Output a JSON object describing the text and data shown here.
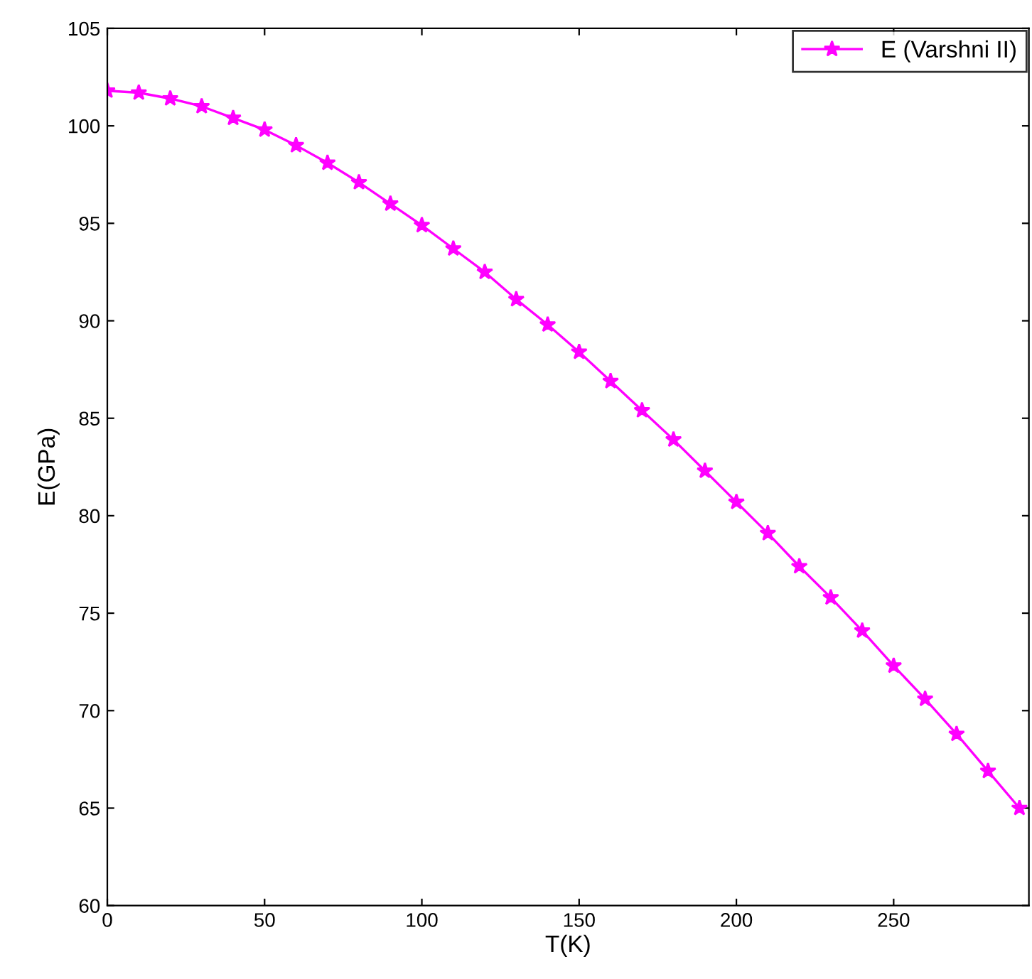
{
  "chart_data": {
    "type": "line",
    "xlabel": "T(K)",
    "ylabel": "E(GPa)",
    "x": [
      0,
      10,
      20,
      30,
      40,
      50,
      60,
      70,
      80,
      90,
      100,
      110,
      120,
      130,
      140,
      150,
      160,
      170,
      180,
      190,
      200,
      210,
      220,
      230,
      240,
      250,
      260,
      270,
      280,
      290
    ],
    "series": [
      {
        "name": "E (Varshni II)",
        "color": "#ff00ff",
        "values": [
          101.8,
          101.7,
          101.4,
          101.0,
          100.4,
          99.8,
          99.0,
          98.1,
          97.1,
          96.0,
          94.9,
          93.7,
          92.5,
          91.1,
          89.8,
          88.4,
          86.9,
          85.4,
          83.9,
          82.3,
          80.7,
          79.1,
          77.4,
          75.8,
          74.1,
          72.3,
          70.6,
          68.8,
          66.9,
          65.0
        ]
      }
    ],
    "xlim": [
      0,
      293
    ],
    "xticks": [
      0,
      50,
      100,
      150,
      200,
      250
    ],
    "ylim": [
      60,
      105
    ],
    "yticks": [
      60,
      65,
      70,
      75,
      80,
      85,
      90,
      95,
      100,
      105
    ],
    "marker": "star",
    "line_style": "solid",
    "grid": false,
    "legend": "top right"
  }
}
